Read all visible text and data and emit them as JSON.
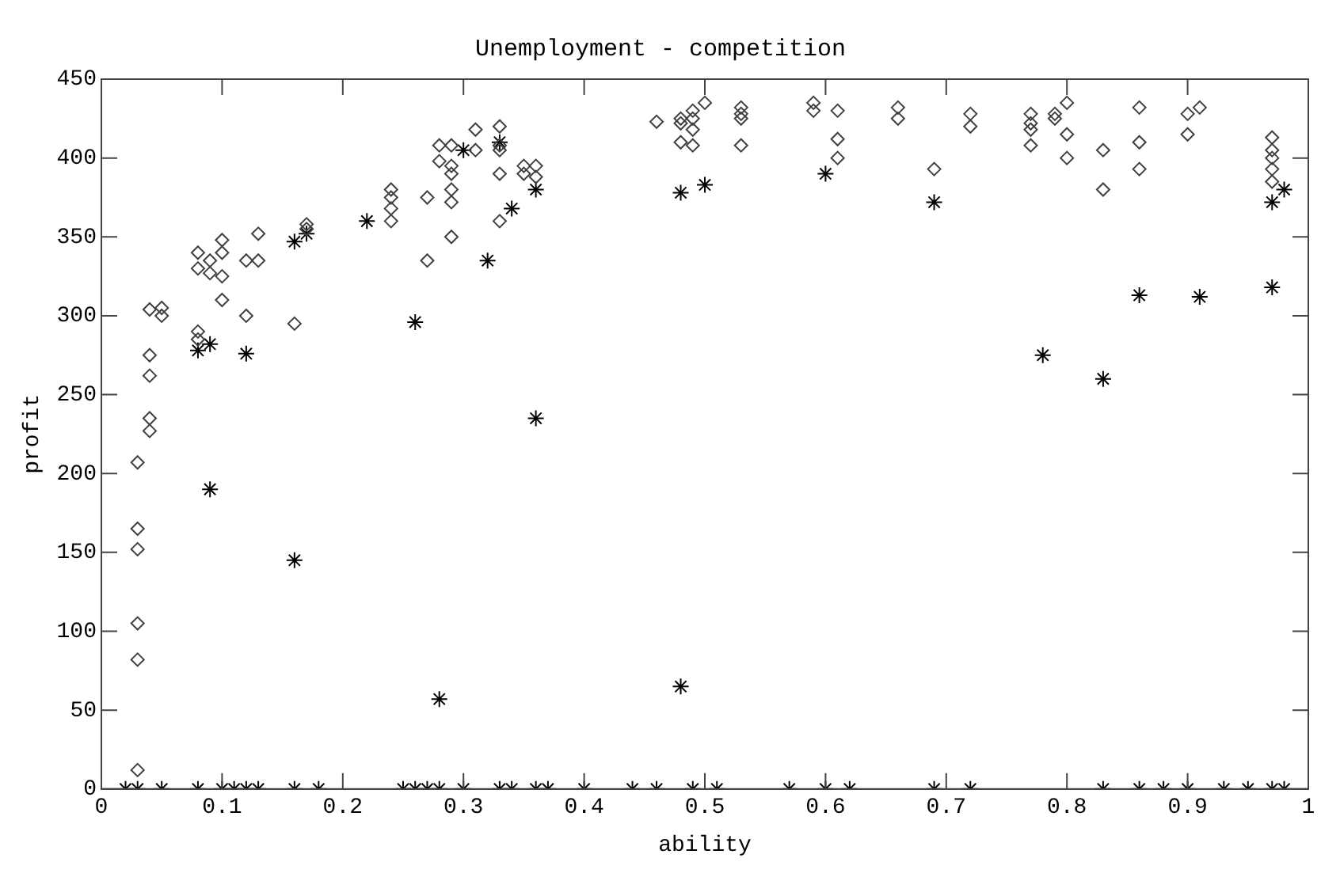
{
  "chart_data": {
    "type": "scatter",
    "title": "Unemployment - competition",
    "xlabel": "ability",
    "ylabel": "profit",
    "xlim": [
      0,
      1
    ],
    "xticks": [
      0,
      0.1,
      0.2,
      0.3,
      0.4,
      0.5,
      0.6,
      0.7,
      0.8,
      0.9,
      1
    ],
    "ylim": [
      0,
      450
    ],
    "yticks": [
      0,
      50,
      100,
      150,
      200,
      250,
      300,
      350,
      400,
      450
    ],
    "legend": false,
    "series": [
      {
        "color": "#404040",
        "marker": "diamond",
        "x": [
          0.03,
          0.03,
          0.03,
          0.03,
          0.03,
          0.03,
          0.04,
          0.04,
          0.04,
          0.04,
          0.04,
          0.05,
          0.05,
          0.08,
          0.08,
          0.08,
          0.08,
          0.09,
          0.09,
          0.1,
          0.1,
          0.1,
          0.1,
          0.12,
          0.12,
          0.13,
          0.13,
          0.16,
          0.17,
          0.17,
          0.24,
          0.24,
          0.24,
          0.24,
          0.27,
          0.27,
          0.28,
          0.28,
          0.29,
          0.29,
          0.29,
          0.29,
          0.29,
          0.29,
          0.31,
          0.31,
          0.33,
          0.33,
          0.33,
          0.33,
          0.33,
          0.35,
          0.35,
          0.36,
          0.36,
          0.46,
          0.48,
          0.48,
          0.48,
          0.49,
          0.49,
          0.49,
          0.49,
          0.5,
          0.53,
          0.53,
          0.53,
          0.53,
          0.59,
          0.59,
          0.61,
          0.61,
          0.61,
          0.66,
          0.66,
          0.69,
          0.72,
          0.72,
          0.77,
          0.77,
          0.77,
          0.77,
          0.79,
          0.79,
          0.8,
          0.8,
          0.8,
          0.83,
          0.83,
          0.86,
          0.86,
          0.86,
          0.9,
          0.9,
          0.91,
          0.97,
          0.97,
          0.97,
          0.97,
          0.97
        ],
        "values": [
          12,
          82,
          105,
          152,
          165,
          207,
          227,
          235,
          262,
          275,
          304,
          305,
          300,
          285,
          290,
          330,
          340,
          327,
          335,
          325,
          348,
          340,
          310,
          300,
          335,
          352,
          335,
          295,
          355,
          358,
          380,
          375,
          368,
          360,
          335,
          375,
          398,
          408,
          395,
          390,
          380,
          372,
          350,
          408,
          405,
          418,
          420,
          408,
          405,
          360,
          390,
          395,
          390,
          395,
          388,
          423,
          425,
          422,
          410,
          430,
          418,
          408,
          425,
          435,
          432,
          428,
          425,
          408,
          435,
          430,
          430,
          412,
          400,
          432,
          425,
          393,
          428,
          420,
          428,
          422,
          418,
          408,
          428,
          425,
          435,
          415,
          400,
          405,
          380,
          432,
          410,
          393,
          428,
          415,
          432,
          413,
          405,
          400,
          393,
          385
        ]
      },
      {
        "color": "#000000",
        "marker": "cross",
        "x": [
          0.02,
          0.03,
          0.05,
          0.08,
          0.1,
          0.11,
          0.12,
          0.13,
          0.16,
          0.18,
          0.25,
          0.26,
          0.27,
          0.28,
          0.3,
          0.33,
          0.34,
          0.36,
          0.37,
          0.4,
          0.44,
          0.46,
          0.49,
          0.51,
          0.57,
          0.6,
          0.62,
          0.69,
          0.72,
          0.83,
          0.86,
          0.88,
          0.9,
          0.93,
          0.95,
          0.97,
          0.98,
          0.08,
          0.09,
          0.09,
          0.12,
          0.16,
          0.16,
          0.17,
          0.22,
          0.26,
          0.28,
          0.3,
          0.32,
          0.33,
          0.34,
          0.36,
          0.36,
          0.48,
          0.48,
          0.5,
          0.6,
          0.69,
          0.78,
          0.83,
          0.86,
          0.91,
          0.97,
          0.97,
          0.98
        ],
        "values": [
          0,
          0,
          0,
          0,
          0,
          0,
          0,
          0,
          0,
          0,
          0,
          0,
          0,
          0,
          0,
          0,
          0,
          0,
          0,
          0,
          0,
          0,
          0,
          0,
          0,
          0,
          0,
          0,
          0,
          0,
          0,
          0,
          0,
          0,
          0,
          0,
          0,
          278,
          282,
          190,
          276,
          145,
          347,
          352,
          360,
          296,
          57,
          405,
          335,
          410,
          368,
          235,
          380,
          378,
          65,
          383,
          390,
          372,
          275,
          260,
          313,
          312,
          372,
          318,
          380
        ]
      }
    ]
  }
}
